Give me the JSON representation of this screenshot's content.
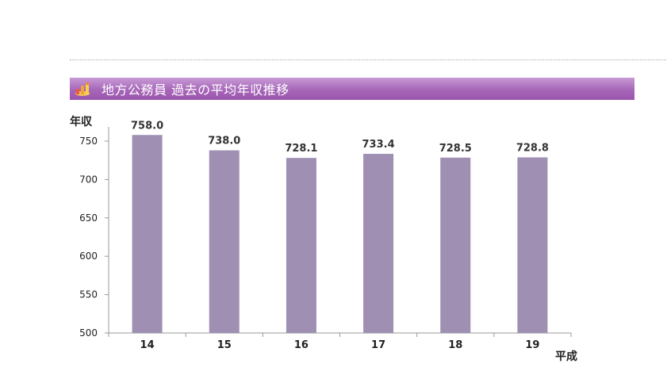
{
  "header": {
    "title": "地方公務員 過去の平均年収推移",
    "icon": "bar-chart-icon"
  },
  "colors": {
    "title_bar": "#a766b8",
    "bar": "#9e8fb3",
    "axis": "#999999"
  },
  "chart_data": {
    "type": "bar",
    "title": "地方公務員 過去の平均年収推移",
    "ylabel": "年収",
    "xlabel": "平成",
    "categories": [
      "14",
      "15",
      "16",
      "17",
      "18",
      "19"
    ],
    "values": [
      758.0,
      738.0,
      728.1,
      733.4,
      728.5,
      728.8
    ],
    "value_labels": [
      "758.0",
      "738.0",
      "728.1",
      "733.4",
      "728.5",
      "728.8"
    ],
    "ylim": [
      500,
      770
    ],
    "yticks": [
      500,
      550,
      600,
      650,
      700,
      750
    ],
    "grid": false,
    "legend": "none"
  }
}
